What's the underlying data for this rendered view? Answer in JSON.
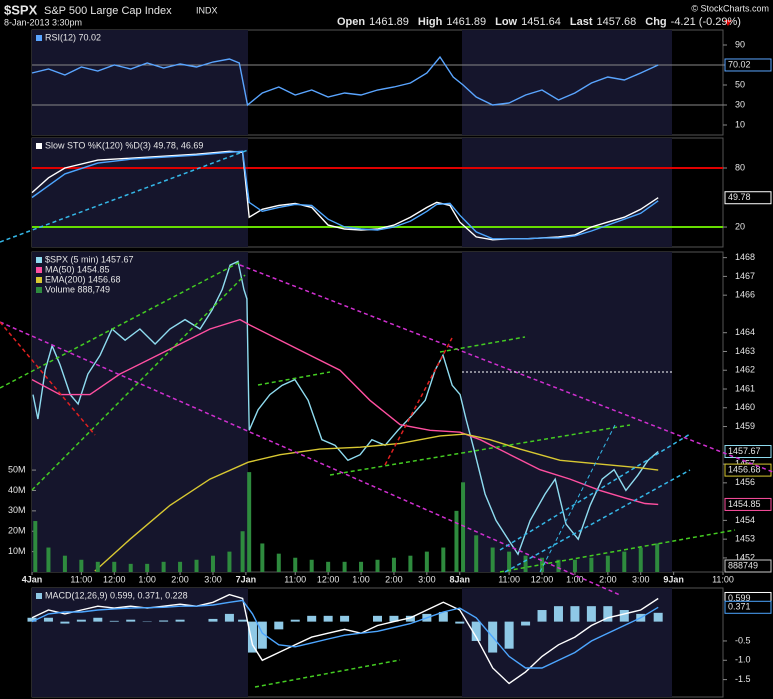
{
  "header": {
    "symbol": "$SPX",
    "name": "S&P 500 Large Cap Index",
    "exchange": "INDX",
    "datetime": "8-Jan-2013 3:30pm",
    "credit": "© StockCharts.com",
    "quote": [
      {
        "label": "Open",
        "value": 1461.89
      },
      {
        "label": "High",
        "value": 1461.89
      },
      {
        "label": "Low",
        "value": 1451.64
      },
      {
        "label": "Last",
        "value": 1457.68
      },
      {
        "label": "Chg",
        "value": "-4.21 (-0.29%)"
      }
    ]
  },
  "chart_data": [
    {
      "type": "line",
      "title": "RSI(12) 70.02",
      "ylim": [
        0,
        105
      ],
      "yticks": [
        90,
        70,
        50,
        30,
        10
      ],
      "ref_lines": [
        70,
        30
      ],
      "x": [
        0,
        0.5,
        1,
        1.5,
        2,
        2.5,
        3,
        3.5,
        4,
        4.5,
        5,
        5.5,
        6,
        6.3,
        6.55,
        7,
        7.5,
        8,
        8.5,
        9,
        9.5,
        10,
        10.5,
        11,
        11.5,
        12,
        12.4,
        12.8,
        13.1,
        13.5,
        14,
        14.5,
        15,
        15.5,
        16,
        16.5,
        17,
        17.5,
        18,
        18.5,
        19.03
      ],
      "series": [
        {
          "color": "#5aa5ff",
          "tag": true,
          "values": [
            62,
            66,
            60,
            68,
            64,
            70,
            66,
            72,
            67,
            71,
            68,
            73,
            76,
            72,
            30,
            42,
            48,
            40,
            45,
            38,
            42,
            40,
            45,
            48,
            52,
            62,
            78,
            58,
            50,
            38,
            30,
            32,
            40,
            45,
            35,
            42,
            52,
            58,
            55,
            62,
            70.02
          ]
        }
      ]
    },
    {
      "type": "line",
      "title": "Slow STO %K(120) %D(3) 49.78, 46.69",
      "ylim": [
        -0.3,
        110.5
      ],
      "yticks": [
        80,
        20
      ],
      "ref_lines": [
        {
          "value": 80,
          "color": "#e00000"
        },
        {
          "value": 20,
          "color": "#66dd00"
        }
      ],
      "x": [
        0,
        0.5,
        1,
        2,
        3,
        4,
        5,
        6,
        6.4,
        6.6,
        7,
        7.5,
        8,
        8.5,
        9,
        9.5,
        10,
        10.5,
        11,
        11.5,
        12,
        12.3,
        12.7,
        13,
        13.5,
        14,
        14.5,
        15,
        15.5,
        16,
        16.5,
        17,
        17.5,
        18,
        18.5,
        19.03
      ],
      "series": [
        {
          "color": "#ffffff",
          "tag": true,
          "values": [
            55,
            70,
            80,
            88,
            90,
            92,
            94,
            97,
            96,
            30,
            38,
            42,
            44,
            40,
            22,
            18,
            17,
            18,
            22,
            30,
            40,
            45,
            42,
            25,
            10,
            7,
            8,
            8,
            9,
            10,
            12,
            20,
            25,
            30,
            38,
            49.78
          ]
        },
        {
          "color": "#4da6ff",
          "values": [
            50,
            62,
            74,
            85,
            89,
            91,
            93,
            96,
            97,
            45,
            36,
            40,
            43,
            42,
            28,
            20,
            18,
            17,
            20,
            26,
            36,
            43,
            44,
            32,
            15,
            8,
            8,
            8,
            9,
            9,
            11,
            16,
            22,
            28,
            34,
            46.69
          ]
        }
      ]
    },
    {
      "type": "line",
      "xlim": [
        0,
        21
      ],
      "ylim": [
        1451.25,
        1468.3
      ],
      "y2lim": [
        0,
        157
      ],
      "xticks": [
        {
          "value": 0,
          "label": "4Jan"
        },
        {
          "value": 1.5,
          "label": "11:00"
        },
        {
          "value": 2.5,
          "label": "12:00"
        },
        {
          "value": 3.5,
          "label": "1:00"
        },
        {
          "value": 4.5,
          "label": "2:00"
        },
        {
          "value": 5.5,
          "label": "3:00"
        },
        {
          "value": 6.5,
          "label": "7Jan"
        },
        {
          "value": 8,
          "label": "11:00"
        },
        {
          "value": 9,
          "label": "12:00"
        },
        {
          "value": 10,
          "label": "1:00"
        },
        {
          "value": 11,
          "label": "2:00"
        },
        {
          "value": 12,
          "label": "3:00"
        },
        {
          "value": 13,
          "label": "8Jan"
        },
        {
          "value": 14.5,
          "label": "11:00"
        },
        {
          "value": 15.5,
          "label": "12:00"
        },
        {
          "value": 16.5,
          "label": "1:00"
        },
        {
          "value": 17.5,
          "label": "2:00"
        },
        {
          "value": 18.5,
          "label": "3:00"
        },
        {
          "value": 19.5,
          "label": "9Jan"
        },
        {
          "value": 21,
          "label": "11:00"
        }
      ],
      "yticks": [
        1468,
        1467,
        1466,
        1464,
        1463,
        1462,
        1461,
        1460,
        1459,
        1457,
        1456,
        1454,
        1453,
        1452
      ],
      "y2ticks": [
        {
          "value": 50,
          "label": "50M"
        },
        {
          "value": 40,
          "label": "40M"
        },
        {
          "value": 30,
          "label": "30M"
        },
        {
          "value": 20,
          "label": "20M"
        },
        {
          "value": 10,
          "label": "10M"
        }
      ],
      "series": [
        {
          "name": "$SPX (5 min) 1457.67",
          "color": "#8fdcf0",
          "tag": true,
          "x": [
            0.03,
            0.18,
            0.4,
            0.61,
            0.85,
            1.16,
            1.4,
            1.7,
            2.07,
            2.43,
            2.83,
            3.28,
            3.74,
            4.19,
            4.65,
            5.11,
            5.47,
            5.78,
            6.02,
            6.26,
            6.44,
            6.53,
            6.6,
            6.87,
            7.23,
            7.6,
            7.99,
            8.39,
            8.81,
            9.21,
            9.6,
            9.97,
            10.33,
            10.73,
            11.12,
            11.55,
            11.95,
            12.25,
            12.49,
            12.77,
            13.01,
            13.19,
            13.43,
            13.77,
            14.1,
            14.47,
            14.77,
            15.14,
            15.59,
            15.9,
            16.23,
            16.6,
            16.96,
            17.33,
            17.69,
            18.05,
            18.41,
            18.72,
            19.03
          ],
          "values": [
            1460.7,
            1459.4,
            1462.0,
            1463.3,
            1462.3,
            1460.7,
            1460.2,
            1461.8,
            1462.8,
            1464.2,
            1463.6,
            1464.2,
            1463.4,
            1464.2,
            1464.7,
            1464.2,
            1465.2,
            1466.3,
            1467.6,
            1467.8,
            1466.3,
            1465.8,
            1458.8,
            1459.9,
            1460.7,
            1461.2,
            1461.5,
            1460.4,
            1458.3,
            1458.0,
            1457.2,
            1457.5,
            1458.3,
            1458.0,
            1458.8,
            1459.6,
            1460.4,
            1462.0,
            1462.8,
            1461.2,
            1460.7,
            1459.4,
            1457.8,
            1455.4,
            1454.0,
            1453.0,
            1452.2,
            1454.0,
            1455.4,
            1456.2,
            1453.8,
            1453.0,
            1454.8,
            1456.2,
            1456.7,
            1455.6,
            1456.4,
            1457.2,
            1457.67
          ]
        },
        {
          "name": "MA(50) 1454.85",
          "color": "#ff4fa0",
          "tag": true,
          "x": [
            0,
            0.85,
            1.76,
            2.67,
            3.59,
            4.5,
            5.41,
            6.32,
            6.63,
            7.54,
            8.45,
            9.36,
            10.27,
            11.19,
            12.1,
            13.01,
            13.62,
            14.53,
            15.44,
            16.35,
            17.26,
            18.02,
            18.63,
            19.03
          ],
          "values": [
            1461.5,
            1460.7,
            1460.7,
            1461.8,
            1462.6,
            1463.4,
            1464.2,
            1464.7,
            1464.4,
            1463.6,
            1462.8,
            1462.0,
            1460.4,
            1459.1,
            1458.8,
            1458.7,
            1458.3,
            1457.5,
            1456.7,
            1456.2,
            1455.6,
            1455.2,
            1454.9,
            1454.85
          ]
        },
        {
          "name": "EMA(200) 1456.68",
          "color": "#d8c832",
          "tag": true,
          "x": [
            1.91,
            2.98,
            4.19,
            5.41,
            6.57,
            7.54,
            8.75,
            9.97,
            11.19,
            12.4,
            13.16,
            13.92,
            14.83,
            16.05,
            17.26,
            18.48,
            19.03
          ],
          "values": [
            1451.3,
            1453.0,
            1454.8,
            1456.2,
            1457.1,
            1457.5,
            1457.8,
            1457.9,
            1458.1,
            1458.5,
            1458.6,
            1458.3,
            1457.8,
            1457.2,
            1457.0,
            1456.8,
            1456.68
          ]
        },
        {
          "name": "Volume 888,749",
          "color": "#2e8b3e",
          "type": "bar",
          "axis": "y2",
          "last": 0.888749,
          "last_label": "888749",
          "x": [
            0.1,
            0.5,
            1,
            1.5,
            2,
            2.5,
            3,
            3.5,
            4,
            4.5,
            5,
            5.5,
            6,
            6.4,
            6.6,
            7,
            7.5,
            8,
            8.5,
            9,
            9.5,
            10,
            10.5,
            11,
            11.5,
            12,
            12.5,
            12.9,
            13.1,
            13.5,
            14,
            14.5,
            15,
            15.5,
            16,
            16.5,
            17,
            17.5,
            18,
            18.5,
            19
          ],
          "values": [
            25,
            12,
            8,
            6,
            5,
            5,
            4,
            4,
            5,
            5,
            6,
            8,
            10,
            20,
            49,
            14,
            9,
            7,
            6,
            5,
            5,
            5,
            6,
            7,
            8,
            10,
            12,
            30,
            44,
            18,
            12,
            10,
            8,
            7,
            6,
            6,
            7,
            8,
            10,
            12,
            14
          ]
        }
      ]
    },
    {
      "type": "line",
      "title": "MACD(12,26,9) 0.599, 0.371, 0.228",
      "ylim": [
        -1.95,
        0.87
      ],
      "yticks": [
        -0.5,
        {
          "value": -1,
          "label": "-1.0"
        },
        -1.5
      ],
      "x": [
        0,
        0.5,
        1,
        1.5,
        2,
        2.5,
        3,
        3.5,
        4,
        4.5,
        5,
        5.5,
        6,
        6.4,
        6.7,
        7,
        7.5,
        8,
        8.5,
        9,
        9.5,
        10,
        10.5,
        11,
        11.5,
        12,
        12.5,
        13,
        13.5,
        14,
        14.5,
        15,
        15.5,
        16,
        16.5,
        17,
        17.5,
        18,
        18.5,
        19.03
      ],
      "series": [
        {
          "color": "#8fc9e6",
          "type": "bar",
          "values": [
            0.1,
            0.1,
            -0.05,
            0.05,
            0.1,
            0.02,
            0.05,
            -0.01,
            0.03,
            0.05,
            0,
            0.07,
            0.2,
            0.05,
            -0.8,
            -0.7,
            -0.2,
            0.05,
            0.15,
            0.15,
            0.15,
            0,
            0.15,
            0.15,
            0.15,
            0.2,
            0.25,
            -0.05,
            -0.5,
            -0.8,
            -0.7,
            -0.1,
            0.3,
            0.4,
            0.4,
            0.4,
            0.4,
            0.3,
            0.2,
            0.228
          ]
        },
        {
          "color": "#ffffff",
          "tag": true,
          "values": [
            0.1,
            0.3,
            0.2,
            0.3,
            0.4,
            0.35,
            0.4,
            0.35,
            0.4,
            0.45,
            0.4,
            0.5,
            0.7,
            0.6,
            -0.6,
            -1.0,
            -0.8,
            -0.6,
            -0.4,
            -0.3,
            -0.2,
            -0.3,
            -0.1,
            0.0,
            0.1,
            0.3,
            0.5,
            0.3,
            -0.4,
            -1.2,
            -1.6,
            -1.3,
            -0.9,
            -0.6,
            -0.4,
            -0.1,
            0.1,
            0.2,
            0.3,
            0.599
          ]
        },
        {
          "color": "#4da6ff",
          "tag": true,
          "values": [
            0.0,
            0.2,
            0.25,
            0.25,
            0.3,
            0.33,
            0.35,
            0.36,
            0.37,
            0.4,
            0.4,
            0.43,
            0.5,
            0.55,
            0.2,
            -0.3,
            -0.6,
            -0.65,
            -0.55,
            -0.45,
            -0.35,
            -0.3,
            -0.25,
            -0.15,
            -0.05,
            0.1,
            0.25,
            0.35,
            0.1,
            -0.4,
            -0.9,
            -1.2,
            -1.2,
            -1.0,
            -0.8,
            -0.5,
            -0.3,
            -0.1,
            0.1,
            0.371
          ]
        }
      ]
    }
  ]
}
